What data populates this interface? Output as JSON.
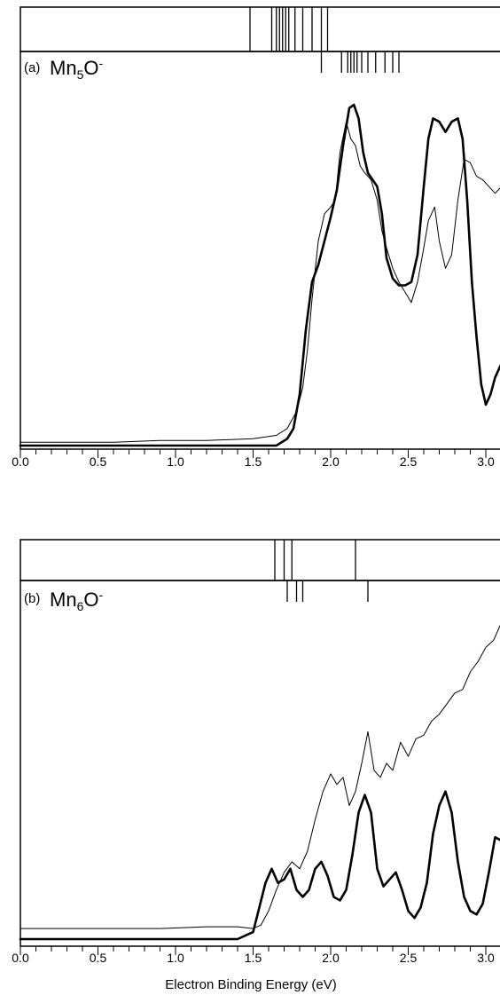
{
  "chart_data": [
    {
      "type": "line",
      "panel_label": "(a)",
      "species": {
        "base": "Mn",
        "sub": "5",
        "tail": "O",
        "sup": "-"
      },
      "xlabel": "",
      "xlim": [
        0.0,
        3.2
      ],
      "x_tick_labels": [
        "0.0",
        "0.5",
        "1.0",
        "1.5",
        "2.0",
        "2.5",
        "3.0"
      ],
      "grid": false,
      "stick_rows": [
        {
          "row": "upper",
          "x": [
            1.48,
            1.62,
            1.65,
            1.67,
            1.69,
            1.71,
            1.73,
            1.77,
            1.82,
            1.88,
            1.94,
            1.98
          ]
        },
        {
          "row": "lower",
          "x": [
            1.94,
            2.07,
            2.11,
            2.13,
            2.15,
            2.17,
            2.2,
            2.24,
            2.29,
            2.35,
            2.4,
            2.44
          ]
        }
      ],
      "series": [
        {
          "style": "thin",
          "x": [
            0.0,
            0.3,
            0.6,
            0.9,
            1.2,
            1.5,
            1.65,
            1.72,
            1.78,
            1.82,
            1.85,
            1.88,
            1.92,
            1.96,
            2.0,
            2.03,
            2.06,
            2.1,
            2.13,
            2.16,
            2.19,
            2.22,
            2.26,
            2.3,
            2.33,
            2.36,
            2.4,
            2.44,
            2.48,
            2.52,
            2.56,
            2.6,
            2.63,
            2.67,
            2.7,
            2.74,
            2.78,
            2.82,
            2.86,
            2.9,
            2.94,
            2.98,
            3.02,
            3.06,
            3.1,
            3.14,
            3.18,
            3.2
          ],
          "y": [
            0.01,
            0.01,
            0.01,
            0.015,
            0.015,
            0.02,
            0.03,
            0.05,
            0.1,
            0.17,
            0.28,
            0.43,
            0.6,
            0.68,
            0.7,
            0.72,
            0.86,
            0.95,
            0.9,
            0.88,
            0.82,
            0.8,
            0.78,
            0.72,
            0.63,
            0.58,
            0.52,
            0.48,
            0.45,
            0.42,
            0.48,
            0.58,
            0.66,
            0.7,
            0.6,
            0.52,
            0.56,
            0.72,
            0.84,
            0.83,
            0.79,
            0.78,
            0.76,
            0.74,
            0.76,
            0.84,
            0.9,
            0.88
          ]
        },
        {
          "style": "thick",
          "x": [
            0.0,
            0.5,
            1.0,
            1.5,
            1.65,
            1.72,
            1.76,
            1.8,
            1.84,
            1.88,
            1.92,
            1.96,
            2.0,
            2.04,
            2.08,
            2.12,
            2.15,
            2.18,
            2.21,
            2.24,
            2.27,
            2.3,
            2.33,
            2.36,
            2.4,
            2.44,
            2.48,
            2.52,
            2.56,
            2.6,
            2.63,
            2.66,
            2.7,
            2.74,
            2.78,
            2.82,
            2.85,
            2.88,
            2.91,
            2.94,
            2.97,
            3.0,
            3.03,
            3.06,
            3.1,
            3.14,
            3.18,
            3.2
          ],
          "y": [
            0.0,
            0.0,
            0.0,
            0.0,
            0.0,
            0.02,
            0.05,
            0.15,
            0.34,
            0.48,
            0.53,
            0.6,
            0.67,
            0.75,
            0.88,
            0.99,
            1.0,
            0.96,
            0.86,
            0.8,
            0.78,
            0.76,
            0.68,
            0.55,
            0.49,
            0.47,
            0.47,
            0.48,
            0.56,
            0.76,
            0.9,
            0.96,
            0.95,
            0.92,
            0.95,
            0.96,
            0.9,
            0.72,
            0.48,
            0.32,
            0.18,
            0.12,
            0.15,
            0.2,
            0.24,
            0.3,
            0.39,
            0.42
          ]
        }
      ]
    },
    {
      "type": "line",
      "panel_label": "(b)",
      "species": {
        "base": "Mn",
        "sub": "6",
        "tail": "O",
        "sup": "-"
      },
      "xlabel": "Electron Binding Energy (eV)",
      "xlim": [
        0.0,
        3.2
      ],
      "x_tick_labels": [
        "0.0",
        "0.5",
        "1.0",
        "1.5",
        "2.0",
        "2.5",
        "3.0"
      ],
      "grid": false,
      "stick_rows": [
        {
          "row": "upper",
          "x": [
            1.64,
            1.7,
            1.75,
            2.16
          ]
        },
        {
          "row": "lower",
          "x": [
            1.72,
            1.78,
            1.82,
            2.24
          ]
        }
      ],
      "series": [
        {
          "style": "thin",
          "x": [
            0.0,
            0.3,
            0.6,
            0.9,
            1.2,
            1.4,
            1.5,
            1.55,
            1.6,
            1.65,
            1.7,
            1.75,
            1.8,
            1.85,
            1.9,
            1.95,
            2.0,
            2.04,
            2.08,
            2.12,
            2.16,
            2.2,
            2.24,
            2.28,
            2.32,
            2.36,
            2.4,
            2.45,
            2.5,
            2.55,
            2.6,
            2.65,
            2.7,
            2.75,
            2.8,
            2.85,
            2.9,
            2.95,
            3.0,
            3.05,
            3.1,
            3.15,
            3.2
          ],
          "y": [
            0.03,
            0.03,
            0.03,
            0.03,
            0.035,
            0.035,
            0.03,
            0.04,
            0.08,
            0.14,
            0.19,
            0.22,
            0.2,
            0.25,
            0.34,
            0.42,
            0.47,
            0.44,
            0.46,
            0.38,
            0.42,
            0.5,
            0.59,
            0.48,
            0.46,
            0.5,
            0.48,
            0.56,
            0.52,
            0.57,
            0.58,
            0.62,
            0.64,
            0.67,
            0.7,
            0.71,
            0.76,
            0.79,
            0.83,
            0.85,
            0.9,
            0.96,
            0.98
          ]
        },
        {
          "style": "thick",
          "x": [
            0.0,
            0.5,
            1.0,
            1.4,
            1.5,
            1.54,
            1.58,
            1.62,
            1.66,
            1.7,
            1.74,
            1.78,
            1.82,
            1.86,
            1.9,
            1.94,
            1.98,
            2.02,
            2.06,
            2.1,
            2.14,
            2.18,
            2.22,
            2.26,
            2.3,
            2.34,
            2.38,
            2.42,
            2.46,
            2.5,
            2.54,
            2.58,
            2.62,
            2.66,
            2.7,
            2.74,
            2.78,
            2.82,
            2.86,
            2.9,
            2.94,
            2.98,
            3.02,
            3.06,
            3.1,
            3.14,
            3.18,
            3.2
          ],
          "y": [
            0.0,
            0.0,
            0.0,
            0.0,
            0.02,
            0.09,
            0.16,
            0.2,
            0.16,
            0.17,
            0.2,
            0.14,
            0.12,
            0.14,
            0.2,
            0.22,
            0.18,
            0.12,
            0.11,
            0.14,
            0.24,
            0.36,
            0.41,
            0.36,
            0.2,
            0.15,
            0.17,
            0.19,
            0.14,
            0.08,
            0.06,
            0.09,
            0.16,
            0.3,
            0.38,
            0.42,
            0.36,
            0.22,
            0.12,
            0.08,
            0.07,
            0.1,
            0.19,
            0.29,
            0.28,
            0.14,
            0.04,
            0.02
          ]
        }
      ]
    }
  ]
}
